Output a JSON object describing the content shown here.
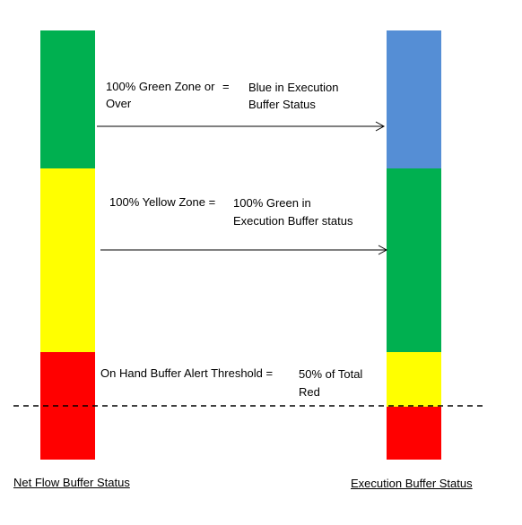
{
  "colors": {
    "green": "#00B050",
    "yellow": "#FFFF00",
    "red": "#FF0000",
    "blue": "#558ED5",
    "line": "#000000"
  },
  "left_bar": {
    "title": "Net Flow Buffer Status",
    "segments": [
      "green",
      "yellow",
      "red"
    ]
  },
  "right_bar": {
    "title": "Execution Buffer Status",
    "segments": [
      "blue",
      "green",
      "yellow",
      "red"
    ]
  },
  "annotations": {
    "green_zone": {
      "left_line1": "100% Green Zone or",
      "equals": "=",
      "left_line2": "Over",
      "right_line1": "Blue in Execution",
      "right_line2": "Buffer Status"
    },
    "yellow_zone": {
      "left": "100% Yellow Zone  =",
      "right_line1": "100% Green in",
      "right_line2": "Execution Buffer status"
    },
    "alert_threshold": {
      "left": "On Hand Buffer Alert Threshold  =",
      "right_line1": "50% of Total",
      "right_line2": "Red"
    }
  }
}
